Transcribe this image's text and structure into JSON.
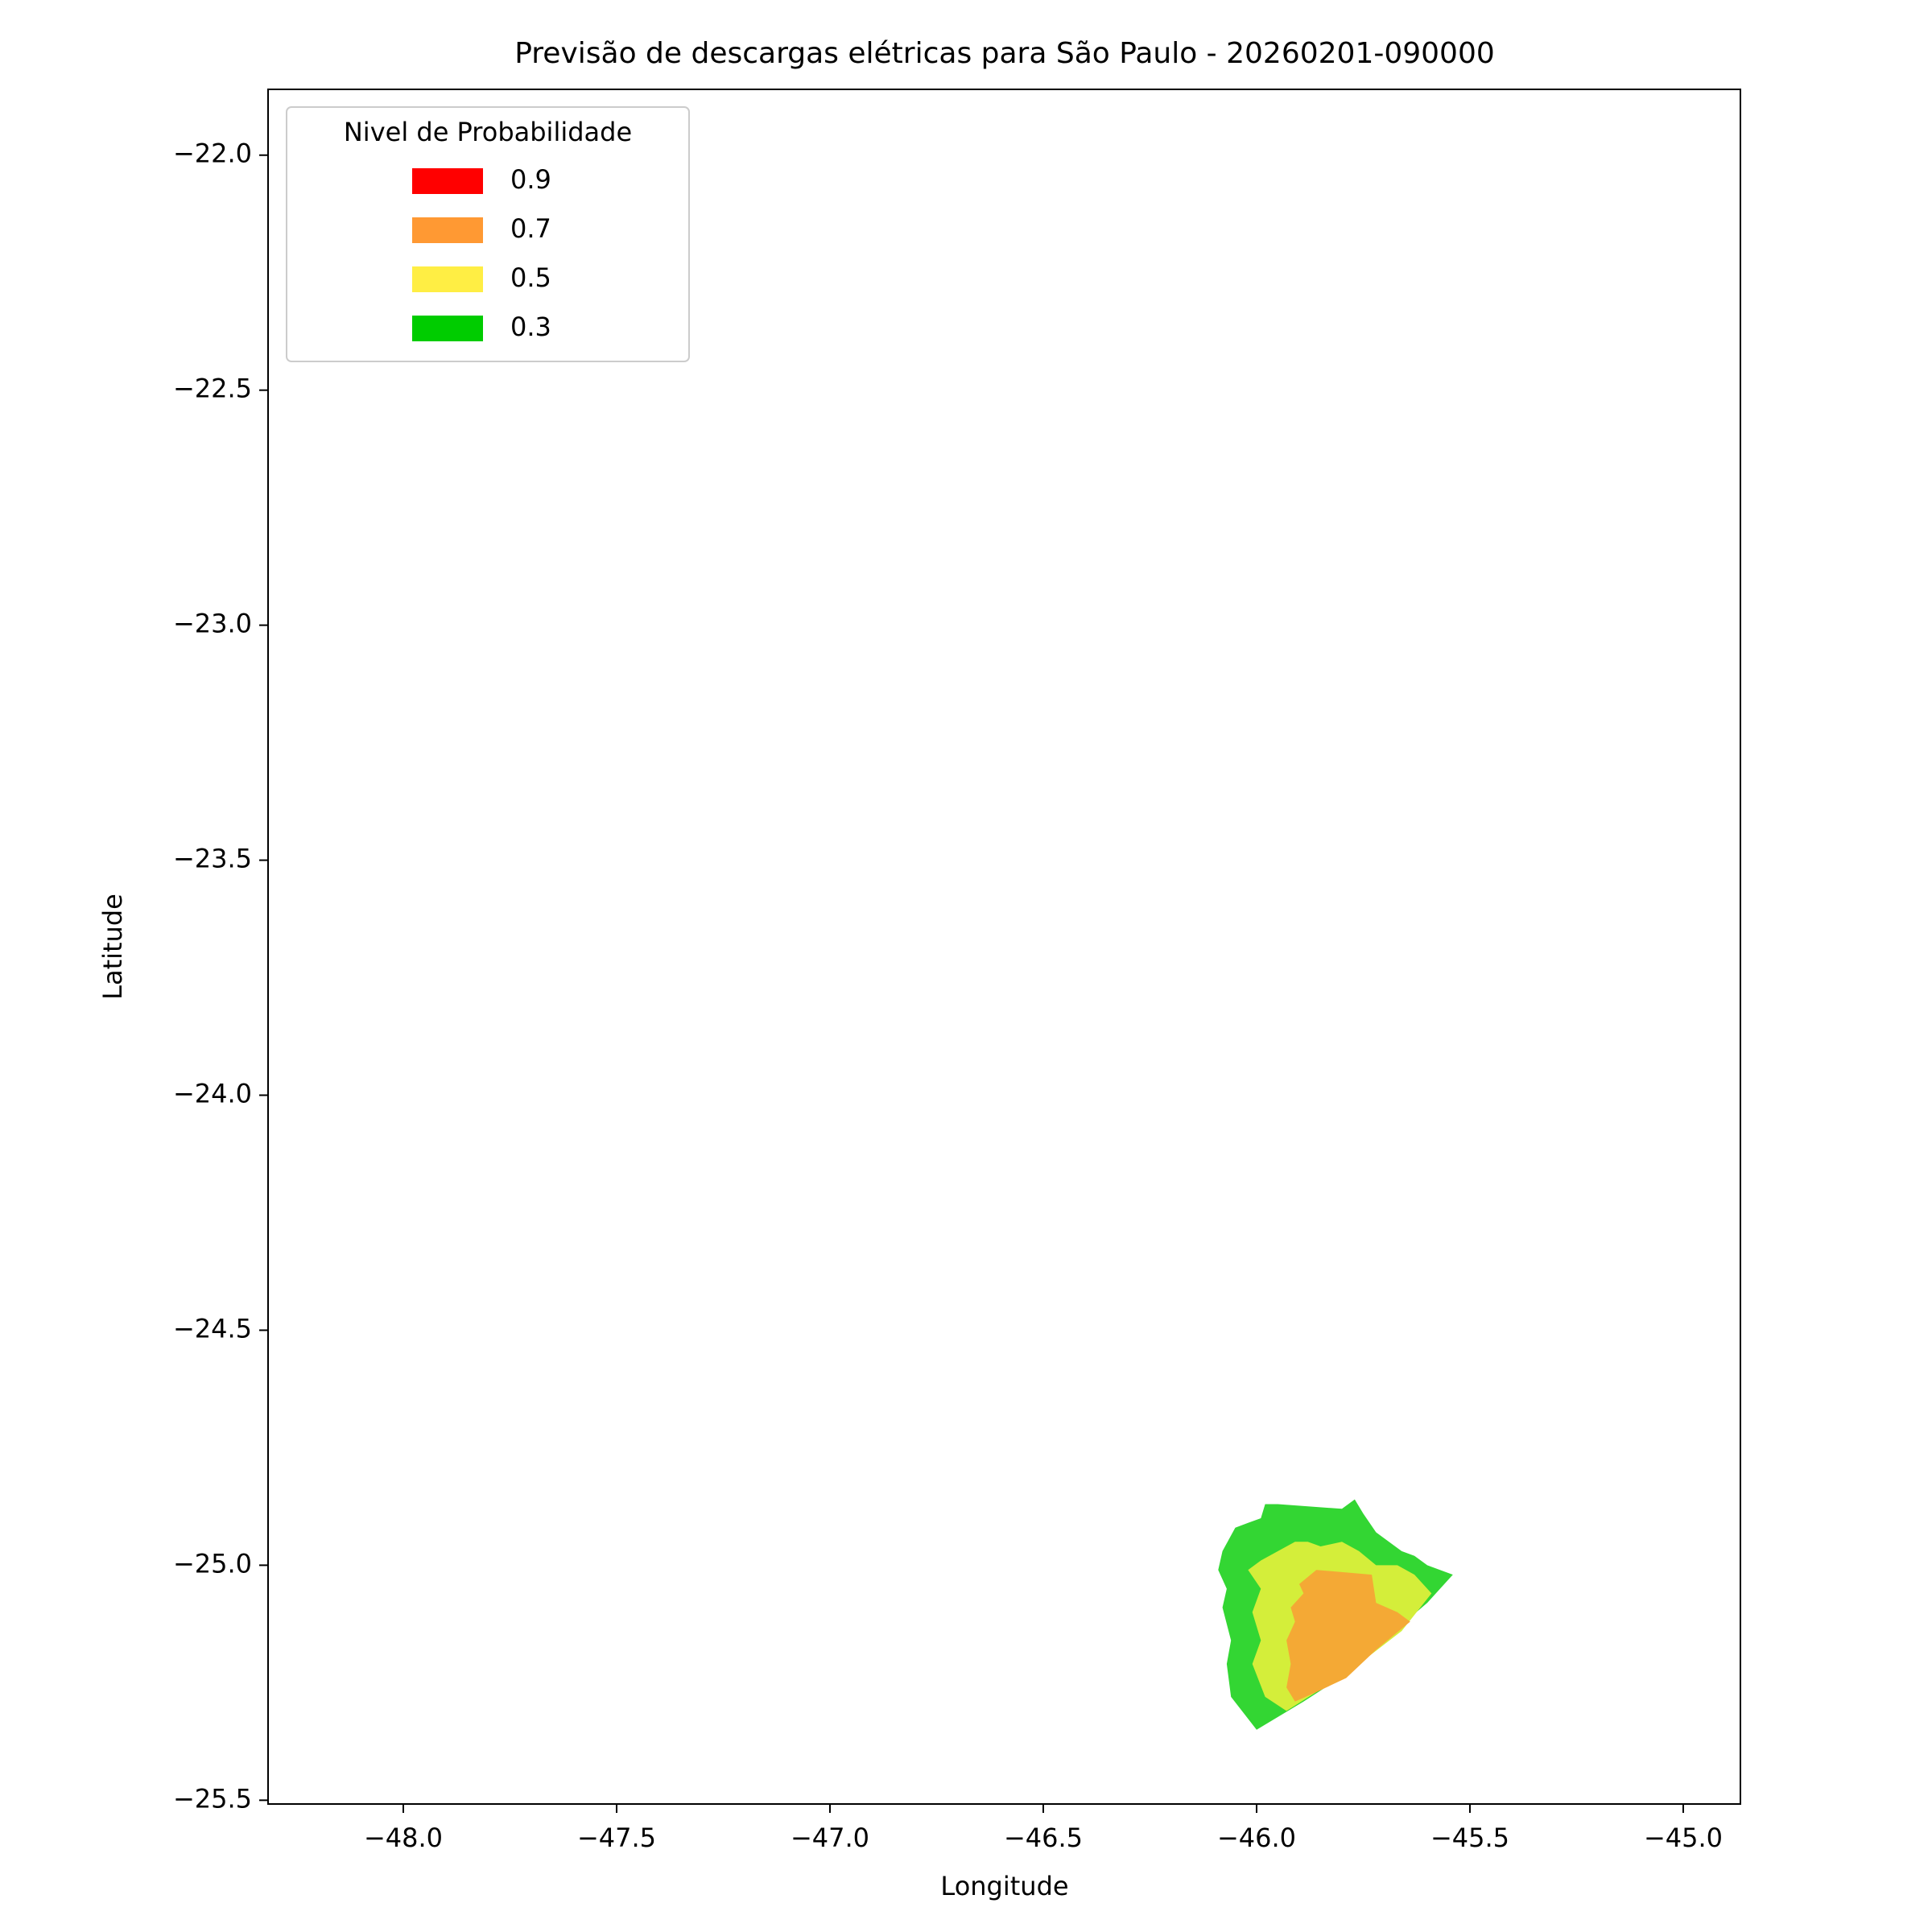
{
  "chart_data": {
    "type": "contourf",
    "title": "Previsão de descargas elétricas para São Paulo - 20260201-090000",
    "x_label": "Longitude",
    "y_label": "Latitude",
    "xlim": [
      -48.317,
      -44.866
    ],
    "ylim": [
      -25.508,
      -21.86
    ],
    "xticks": [
      {
        "value": -48,
        "label": "−48.0"
      },
      {
        "value": -47.5,
        "label": "−47.5"
      },
      {
        "value": -47,
        "label": "−47.0"
      },
      {
        "value": -46.5,
        "label": "−46.5"
      },
      {
        "value": -46,
        "label": "−46.0"
      },
      {
        "value": -45.5,
        "label": "−45.5"
      },
      {
        "value": -45,
        "label": "−45.0"
      }
    ],
    "yticks": [
      {
        "value": -22,
        "label": "−22.0"
      },
      {
        "value": -22.5,
        "label": "−22.5"
      },
      {
        "value": -23,
        "label": "−23.0"
      },
      {
        "value": -23.5,
        "label": "−23.5"
      },
      {
        "value": -24,
        "label": "−24.0"
      },
      {
        "value": -24.5,
        "label": "−24.5"
      },
      {
        "value": -25,
        "label": "−25.0"
      },
      {
        "value": -25.5,
        "label": "−25.5"
      }
    ],
    "legend_title": "Nivel de Probabilidade",
    "legend_position": "upper left",
    "series": [
      {
        "name": "0.9",
        "color": "#ff0000",
        "fill_color": "#ff0000",
        "x": [],
        "y": []
      },
      {
        "name": "0.7",
        "color": "#ff9933",
        "fill_color": "#f4a935",
        "x": [
          -45.91,
          -45.93,
          -45.92,
          -45.93,
          -45.91,
          -45.92,
          -45.89,
          -45.9,
          -45.86,
          -45.73,
          -45.72,
          -45.67,
          -45.64,
          -45.72,
          -45.79,
          -45.86
        ],
        "y": [
          -25.29,
          -25.26,
          -25.21,
          -25.16,
          -25.12,
          -25.09,
          -25.06,
          -25.04,
          -25.01,
          -25.02,
          -25.08,
          -25.1,
          -25.12,
          -25.18,
          -25.24,
          -25.27
        ]
      },
      {
        "name": "0.5",
        "color": "#ffee44",
        "fill_color": "#d4ee3a",
        "x": [
          -45.93,
          -45.98,
          -46.01,
          -45.99,
          -46.01,
          -45.99,
          -46.02,
          -45.99,
          -45.95,
          -45.91,
          -45.88,
          -45.85,
          -45.8,
          -45.76,
          -45.72,
          -45.67,
          -45.63,
          -45.59,
          -45.66,
          -45.76,
          -45.86
        ],
        "y": [
          -25.31,
          -25.28,
          -25.21,
          -25.16,
          -25.1,
          -25.05,
          -25.01,
          -24.99,
          -24.97,
          -24.95,
          -24.95,
          -24.96,
          -24.95,
          -24.97,
          -25.0,
          -25.0,
          -25.02,
          -25.06,
          -25.14,
          -25.21,
          -25.27
        ]
      },
      {
        "name": "0.3",
        "color": "#00cc00",
        "fill_color": "#33d633",
        "x": [
          -46.0,
          -46.06,
          -46.07,
          -46.06,
          -46.08,
          -46.07,
          -46.09,
          -46.08,
          -46.05,
          -46.02,
          -45.99,
          -45.98,
          -45.95,
          -45.8,
          -45.77,
          -45.75,
          -45.72,
          -45.66,
          -45.63,
          -45.6,
          -45.54,
          -45.6,
          -45.69,
          -45.77,
          -45.89
        ],
        "y": [
          -25.35,
          -25.28,
          -25.21,
          -25.16,
          -25.09,
          -25.05,
          -25.01,
          -24.97,
          -24.92,
          -24.91,
          -24.9,
          -24.87,
          -24.87,
          -24.88,
          -24.86,
          -24.89,
          -24.93,
          -24.97,
          -24.98,
          -25.0,
          -25.02,
          -25.08,
          -25.15,
          -25.22,
          -25.29
        ]
      }
    ]
  }
}
